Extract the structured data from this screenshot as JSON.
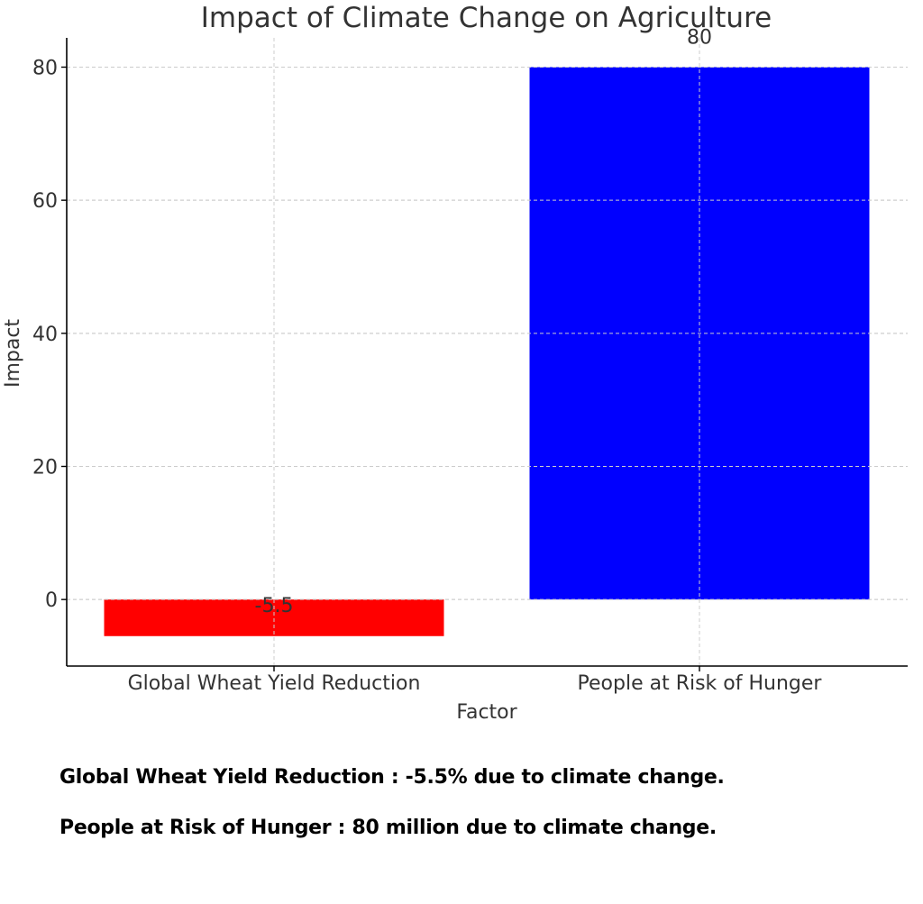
{
  "chart_data": {
    "type": "bar",
    "title": "Impact of Climate Change on Agriculture",
    "xlabel": "Factor",
    "ylabel": "Impact",
    "categories": [
      "Global Wheat Yield Reduction",
      "People at Risk of Hunger"
    ],
    "values": [
      -5.5,
      80
    ],
    "data_labels": [
      "-5.5",
      "80"
    ],
    "colors": [
      "#ff0000",
      "#0000ff"
    ],
    "ylim": [
      -10,
      84.4
    ],
    "yticks": [
      0,
      20,
      40,
      60,
      80
    ],
    "ytick_labels": [
      "0",
      "20",
      "40",
      "60",
      "80"
    ],
    "grid": true,
    "grid_style": "dashed",
    "legend": "none"
  },
  "notes": [
    "Global Wheat Yield Reduction : -5.5% due to climate change.",
    "People at Risk of Hunger : 80 million due to climate change."
  ],
  "colors": {
    "text": "#333333",
    "axis": "#000000",
    "grid": "#cccccc"
  }
}
